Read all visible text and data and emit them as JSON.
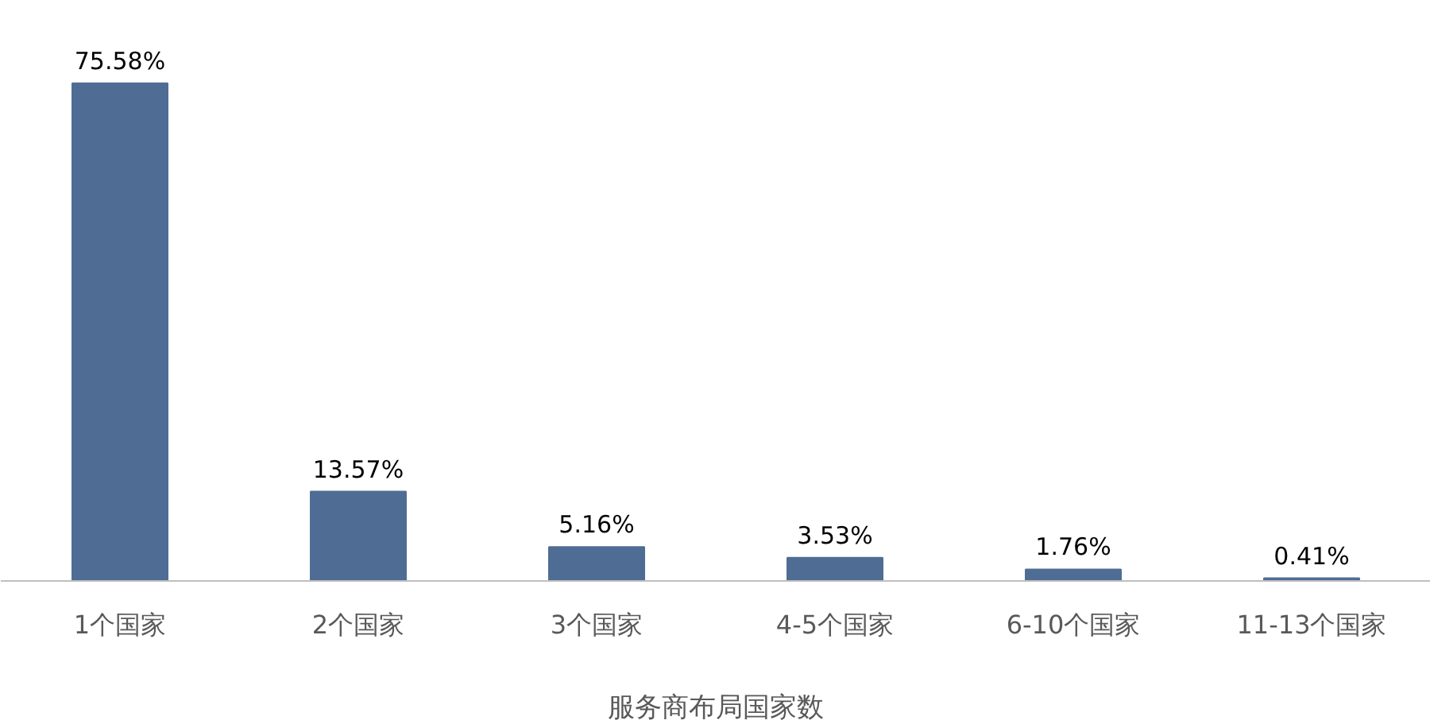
{
  "chart_data": {
    "type": "bar",
    "xlabel": "服务商布局国家数",
    "categories": [
      "1个国家",
      "2个国家",
      "3个国家",
      "4-5个国家",
      "6-10个国家",
      "11-13个国家"
    ],
    "values": [
      75.58,
      13.57,
      5.16,
      3.53,
      1.76,
      0.41
    ],
    "value_labels": [
      "75.58%",
      "13.57%",
      "5.16%",
      "3.53%",
      "1.76%",
      "0.41%"
    ],
    "color": "#4f6d94",
    "grid": false
  }
}
